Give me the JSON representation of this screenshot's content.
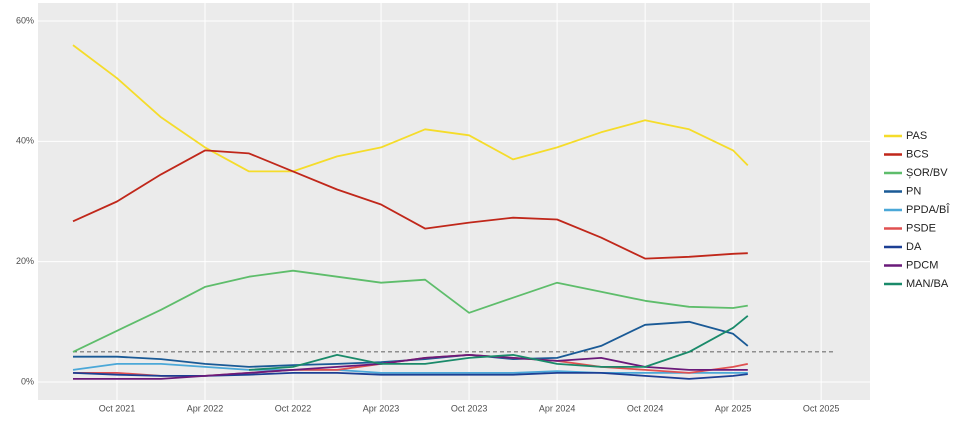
{
  "chart_data": {
    "type": "line",
    "x": [
      "Jul 2021",
      "Oct 2021",
      "Jan 2022",
      "Apr 2022",
      "Jul 2022",
      "Oct 2022",
      "Jan 2023",
      "Apr 2023",
      "Jul 2023",
      "Oct 2023",
      "Jan 2024",
      "Apr 2024",
      "Jul 2024",
      "Oct 2024",
      "Jan 2025",
      "Apr 2025",
      "May 2025"
    ],
    "series": [
      {
        "name": "PAS",
        "color": "#f5dc2a",
        "values": [
          56,
          50.5,
          44,
          39,
          35,
          35,
          37.5,
          39,
          42,
          41,
          37,
          39,
          41.5,
          43.5,
          42,
          38.5,
          36
        ]
      },
      {
        "name": "BCS",
        "color": "#c0271a",
        "values": [
          26.7,
          30,
          34.5,
          38.5,
          38,
          35,
          32,
          29.5,
          25.5,
          26.5,
          27.3,
          27,
          24,
          20.5,
          20.8,
          21.3,
          21.4
        ]
      },
      {
        "name": "ȘOR/BV",
        "color": "#5ebd6b",
        "values": [
          5,
          8.5,
          12,
          15.8,
          17.5,
          18.5,
          17.5,
          16.5,
          17,
          11.5,
          14,
          16.5,
          15,
          13.5,
          12.5,
          12.3,
          12.7
        ]
      },
      {
        "name": "PN",
        "color": "#1a5a96",
        "values": [
          4.2,
          4.2,
          3.8,
          3,
          2.5,
          2.8,
          3,
          3.3,
          3.8,
          4.5,
          3.8,
          4,
          6,
          9.5,
          10,
          8,
          6
        ]
      },
      {
        "name": "PPDA/BÎ",
        "color": "#4ba8d8",
        "values": [
          2,
          3,
          3,
          2.5,
          2,
          2,
          2,
          1.5,
          1.5,
          1.5,
          1.5,
          1.8,
          1.5,
          1.5,
          1.5,
          1.5,
          1.5
        ]
      },
      {
        "name": "PSDE",
        "color": "#e05050",
        "values": [
          1.5,
          1.5,
          1,
          1,
          1.5,
          2,
          2,
          3,
          4,
          4.5,
          4,
          3.5,
          2.5,
          2,
          1.5,
          2.5,
          3
        ]
      },
      {
        "name": "DA",
        "color": "#1c3f94",
        "values": [
          1.5,
          1.2,
          1,
          1,
          1.2,
          1.5,
          1.5,
          1.2,
          1.2,
          1.2,
          1.2,
          1.5,
          1.5,
          1,
          0.5,
          1,
          1.3
        ]
      },
      {
        "name": "PDCM",
        "color": "#6a1a7a",
        "values": [
          0.5,
          0.5,
          0.5,
          1,
          1.5,
          2,
          2.5,
          3,
          4,
          4.5,
          4,
          3.5,
          4,
          2.5,
          2,
          2,
          2
        ]
      },
      {
        "name": "MAN/BA",
        "color": "#1a8a6a",
        "values": [
          null,
          null,
          null,
          null,
          2,
          2.5,
          4.5,
          3,
          3,
          4,
          4.5,
          3,
          2.5,
          2.5,
          5,
          9,
          11
        ]
      }
    ],
    "xticks": [
      "Oct 2021",
      "Apr 2022",
      "Oct 2022",
      "Apr 2023",
      "Oct 2023",
      "Apr 2024",
      "Oct 2024",
      "Apr 2025",
      "Oct 2025"
    ],
    "ylim": [
      -3,
      63
    ],
    "yticks": [
      {
        "value": 0,
        "label": "0%"
      },
      {
        "value": 20,
        "label": "20%"
      },
      {
        "value": 40,
        "label": "40%"
      },
      {
        "value": 60,
        "label": "60%"
      }
    ],
    "threshold": 5,
    "grid": true
  }
}
